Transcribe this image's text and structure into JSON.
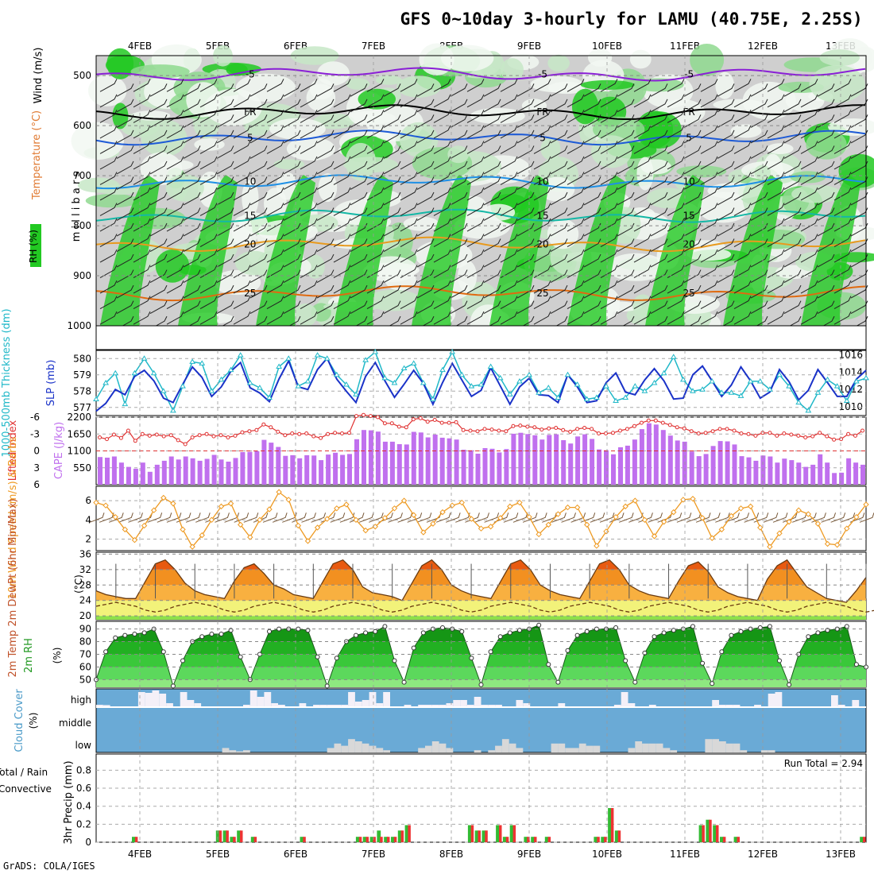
{
  "title": "GFS 0~10day 3-hourly for LAMU (40.75E, 2.25S)",
  "footer": "GrADS: COLA/IGES",
  "dates": [
    "4FEB",
    "5FEB",
    "6FEB",
    "7FEB",
    "8FEB",
    "9FEB",
    "10FEB",
    "11FEB",
    "12FEB",
    "13FEB"
  ],
  "colors": {
    "rh_dark": "#22c922",
    "rh_mid": "#8fd98f",
    "rh_light": "#c7e8c7",
    "gray": "#cfcfcf",
    "slp": "#1a32c8",
    "thick": "#20b8c8",
    "li": "#e03232",
    "cape": "#c070ee",
    "wind": "#ee9a22",
    "rh2m": "#229922",
    "cloud": "#6aaad6",
    "rain": "#33bb33",
    "conv": "#ee3333"
  },
  "chart_data": [
    {
      "type": "heatmap",
      "name": "upper-air",
      "ylabel_rh": "RH (%)",
      "ylabel_temp": "Temperature (°C)",
      "ylabel_wind": "Wind (m/s)",
      "ylabel_mb": "m i l l i b a r s",
      "yticks": [
        500,
        600,
        700,
        800,
        900,
        1000
      ],
      "ylim": [
        460,
        1000
      ],
      "isotherms": [
        {
          "label": "-5",
          "pressure": 497,
          "color": "#8a1fd6"
        },
        {
          "label": "FR",
          "pressure": 573,
          "color": "#000000"
        },
        {
          "label": "5",
          "pressure": 624,
          "color": "#1d5ad6"
        },
        {
          "label": "10",
          "pressure": 712,
          "color": "#1e90e6"
        },
        {
          "label": "15",
          "pressure": 780,
          "color": "#14b8a6"
        },
        {
          "label": "20",
          "pressure": 837,
          "color": "#e89a1e"
        },
        {
          "label": "25",
          "pressure": 935,
          "color": "#e06a10"
        }
      ]
    },
    {
      "type": "line",
      "name": "slp-thickness",
      "ylabel_left": "1000-500mb Thickness (dm)",
      "ylabel_right": "SLP (mb)",
      "yticks_left": [
        577,
        578,
        579,
        580
      ],
      "yticks_right": [
        1010,
        1012,
        1014,
        1016
      ],
      "ylim_left": [
        576.5,
        580.5
      ],
      "ylim_right": [
        1009,
        1016.5
      ],
      "thickness": [
        577.5,
        578.5,
        579.1,
        577.2,
        579.1,
        580.0,
        579.1,
        578.0,
        576.8,
        578.3,
        579.8,
        579.7,
        578.0,
        578.7,
        579.3,
        580.2,
        578.5,
        578.2,
        577.6,
        579.5,
        580.0,
        578.3,
        578.6,
        580.2,
        580.0,
        579.0,
        578.4,
        577.8,
        579.9,
        580.4,
        578.8,
        578.5,
        579.4,
        579.7,
        578.5,
        577.5,
        579.3,
        580.4,
        579.0,
        578.3,
        578.4,
        579.5,
        578.8,
        577.8,
        578.6,
        579.0,
        577.9,
        578.2,
        577.6,
        579.0,
        578.4,
        577.5,
        577.6,
        578.3,
        577.4,
        577.6,
        578.3,
        578.0,
        578.5,
        579.1,
        580.1,
        578.7,
        578.0,
        578.1,
        578.6,
        577.9,
        577.9,
        577.7,
        578.6,
        578.6,
        578.1,
        579.0,
        578.3,
        577.3,
        576.8,
        577.9,
        578.7,
        578.3,
        577.4,
        578.6,
        578.8
      ],
      "slp": [
        1009.5,
        1010.4,
        1012.0,
        1011.4,
        1013.5,
        1014.2,
        1013.0,
        1011.0,
        1010.5,
        1012.6,
        1014.6,
        1013.4,
        1011.2,
        1012.3,
        1014.1,
        1015.1,
        1012.2,
        1011.6,
        1010.6,
        1013.2,
        1015.3,
        1012.3,
        1012.0,
        1014.3,
        1015.6,
        1013.2,
        1011.8,
        1010.5,
        1013.5,
        1015.1,
        1013.0,
        1011.1,
        1012.6,
        1014.2,
        1012.7,
        1010.3,
        1012.8,
        1015.0,
        1013.1,
        1011.2,
        1011.9,
        1014.5,
        1012.4,
        1010.3,
        1012.3,
        1013.3,
        1011.4,
        1011.3,
        1010.5,
        1013.7,
        1012.3,
        1010.5,
        1010.7,
        1012.8,
        1013.9,
        1011.7,
        1011.4,
        1013.1,
        1014.4,
        1013.0,
        1010.9,
        1011.0,
        1013.7,
        1014.7,
        1013.0,
        1011.2,
        1012.5,
        1014.6,
        1013.0,
        1011.0,
        1011.7,
        1014.3,
        1012.9,
        1010.8,
        1011.9,
        1014.3,
        1012.8,
        1011.2,
        1011.2,
        1013.2,
        1014.2
      ]
    },
    {
      "type": "bar",
      "name": "cape-li",
      "ylabel_left": "Lifted Index",
      "ylabel_right": "CAPE (J/kg)",
      "yticks_left": [
        -6,
        -3,
        0,
        3,
        6
      ],
      "yticks_right": [
        550,
        1100,
        1650,
        2200
      ],
      "ylim_cape": [
        0,
        2200
      ],
      "ylim_li": [
        6,
        -6
      ],
      "cape": [
        900,
        880,
        920,
        720,
        580,
        520,
        720,
        420,
        650,
        780,
        920,
        820,
        920,
        860,
        780,
        840,
        970,
        820,
        750,
        870,
        1060,
        1070,
        1090,
        1460,
        1370,
        1230,
        940,
        960,
        860,
        960,
        950,
        800,
        980,
        1040,
        970,
        1000,
        1480,
        1780,
        1770,
        1730,
        1400,
        1400,
        1320,
        1310,
        1720,
        1700,
        1540,
        1630,
        1530,
        1510,
        1470,
        1140,
        1120,
        1010,
        1190,
        1170,
        1050,
        1160,
        1660,
        1690,
        1650,
        1610,
        1470,
        1620,
        1640,
        1450,
        1340,
        1570,
        1640,
        1490,
        1150,
        1120,
        990,
        1220,
        1270,
        1470,
        1810,
        2000,
        1960,
        1780,
        1600,
        1440,
        1400,
        1080,
        930,
        1000,
        1260,
        1420,
        1410,
        1310,
        930,
        890,
        780,
        950,
        920,
        720,
        850,
        800,
        720,
        580,
        650,
        990,
        720,
        380,
        390,
        860,
        720,
        650
      ],
      "li": [
        -2.4,
        -2.1,
        -2.9,
        -2.3,
        -3.6,
        -1.8,
        -3.0,
        -2.7,
        -2.9,
        -2.6,
        -2.8,
        -1.9,
        -1.2,
        -2.4,
        -2.8,
        -3.0,
        -2.6,
        -2.8,
        -2.4,
        -2.7,
        -3.3,
        -3.5,
        -3.7,
        -4.7,
        -4.2,
        -3.4,
        -2.8,
        -3.1,
        -3.0,
        -3.1,
        -2.6,
        -2.3,
        -3.0,
        -3.2,
        -3.1,
        -3.2,
        -6.2,
        -6.4,
        -6.2,
        -6.0,
        -4.9,
        -4.9,
        -4.3,
        -4.2,
        -5.6,
        -5.8,
        -5.2,
        -5.5,
        -5.0,
        -5.0,
        -5.1,
        -3.7,
        -3.6,
        -3.5,
        -3.9,
        -3.8,
        -3.6,
        -3.5,
        -4.4,
        -4.5,
        -4.3,
        -4.2,
        -3.8,
        -4.0,
        -4.1,
        -3.7,
        -3.4,
        -3.9,
        -4.1,
        -3.9,
        -3.1,
        -3.1,
        -3.2,
        -3.6,
        -3.9,
        -4.4,
        -5.0,
        -5.4,
        -5.4,
        -5.0,
        -4.6,
        -4.2,
        -4.0,
        -3.5,
        -3.1,
        -3.2,
        -3.5,
        -3.9,
        -3.9,
        -3.6,
        -3.1,
        -3.0,
        -2.7,
        -3.2,
        -3.2,
        -2.7,
        -3.1,
        -2.9,
        -2.7,
        -2.4,
        -2.6,
        -3.2,
        -2.6,
        -2.0,
        -2.1,
        -3.0,
        -2.7,
        -3.6
      ]
    },
    {
      "type": "line",
      "name": "wind10m",
      "ylabel": "10m Wind Speed (m/s) & Barbs",
      "yticks": [
        2,
        4,
        6
      ],
      "ylim": [
        0.8,
        7.5
      ],
      "speed": [
        5.8,
        5.5,
        4.3,
        3.0,
        1.9,
        3.4,
        5.0,
        6.3,
        5.7,
        3.0,
        1.2,
        2.4,
        4.0,
        5.4,
        5.7,
        3.5,
        2.2,
        4.0,
        5.1,
        6.9,
        6.1,
        3.4,
        1.8,
        3.2,
        4.1,
        5.2,
        5.6,
        4.0,
        2.9,
        3.3,
        4.2,
        5.2,
        6.0,
        4.5,
        2.7,
        3.6,
        4.8,
        5.5,
        5.8,
        4.1,
        3.1,
        3.3,
        4.2,
        5.4,
        5.8,
        4.3,
        2.5,
        3.5,
        4.6,
        5.3,
        5.3,
        3.5,
        1.3,
        2.8,
        4.3,
        5.4,
        6.0,
        4.0,
        2.3,
        3.8,
        4.8,
        6.1,
        6.2,
        4.2,
        2.1,
        3.0,
        4.4,
        5.2,
        5.4,
        3.2,
        1.2,
        2.6,
        3.8,
        5.0,
        4.6,
        3.6,
        1.5,
        1.4,
        3.1,
        4.3,
        5.6
      ]
    },
    {
      "type": "area",
      "name": "temp2m",
      "ylabel": "2m Temp 2m DewPt (6hr Min/Max)",
      "yunit": "(°C)",
      "yticks": [
        20,
        24,
        28,
        32,
        36
      ],
      "ylim": [
        19,
        36.5
      ],
      "temp": [
        26.5,
        25.5,
        25.0,
        24.5,
        24.5,
        29.0,
        33.5,
        34.5,
        32.0,
        28.5,
        26.5,
        25.5,
        25.0,
        24.5,
        29.0,
        32.5,
        33.5,
        31.0,
        28.0,
        27.0,
        25.5,
        25.0,
        24.5,
        29.0,
        33.5,
        34.5,
        32.0,
        27.5,
        26.0,
        25.5,
        25.0,
        24.0,
        28.5,
        33.0,
        34.5,
        32.0,
        28.0,
        26.5,
        25.5,
        25.0,
        24.5,
        29.0,
        33.5,
        34.5,
        32.0,
        28.0,
        26.5,
        25.5,
        25.0,
        24.5,
        29.0,
        33.5,
        34.5,
        32.0,
        28.0,
        26.5,
        25.5,
        25.0,
        24.5,
        29.0,
        33.0,
        34.0,
        31.5,
        27.5,
        26.0,
        25.0,
        24.5,
        24.0,
        29.5,
        33.0,
        34.5,
        31.0,
        27.5,
        26.0,
        24.5,
        24.0,
        23.5,
        26.5,
        30.0
      ],
      "dewpt": [
        22.5,
        23.0,
        23.5,
        23.0,
        22.5,
        21.5,
        21.0,
        21.5,
        22.5,
        23.0,
        23.5,
        23.0,
        22.5,
        21.5,
        21.0,
        21.5,
        22.5,
        23.0,
        23.5,
        23.0,
        22.5,
        21.5,
        21.0,
        21.5,
        22.5,
        23.0,
        23.5,
        23.0,
        22.5,
        21.5,
        21.0,
        21.5,
        22.5,
        23.0,
        23.5,
        23.0,
        22.5,
        21.5,
        21.0,
        21.5,
        22.5,
        23.0,
        23.5,
        23.0,
        22.5,
        21.5,
        21.0,
        21.5,
        22.5,
        23.0,
        23.5,
        23.0,
        22.5,
        21.5,
        21.0,
        21.5,
        22.5,
        23.0,
        23.5,
        23.0,
        22.5,
        21.5,
        21.0,
        21.5,
        22.5,
        23.0,
        23.5,
        23.0,
        22.5,
        21.5,
        21.0,
        21.5,
        22.5,
        23.0,
        23.5,
        23.0,
        22.5,
        21.5,
        21.0,
        21.5,
        22.5
      ]
    },
    {
      "type": "area",
      "name": "rh2m",
      "ylabel": "2m RH",
      "yunit": "(%)",
      "yticks": [
        50,
        60,
        70,
        80,
        90
      ],
      "ylim": [
        44,
        96
      ],
      "rh": [
        50,
        72,
        83,
        85,
        86,
        87,
        90,
        72,
        45,
        65,
        80,
        84,
        86,
        86,
        89,
        68,
        50,
        70,
        88,
        90,
        90,
        90,
        89,
        68,
        45,
        67,
        80,
        85,
        87,
        88,
        92,
        65,
        48,
        75,
        87,
        90,
        91,
        90,
        88,
        67,
        46,
        72,
        84,
        87,
        89,
        90,
        93,
        62,
        48,
        73,
        85,
        88,
        90,
        90,
        91,
        65,
        48,
        71,
        84,
        87,
        89,
        90,
        92,
        63,
        47,
        72,
        85,
        88,
        90,
        91,
        92,
        65,
        46,
        70,
        84,
        87,
        89,
        90,
        92,
        62,
        60
      ]
    },
    {
      "type": "bar",
      "name": "cloud",
      "ylabel": "Cloud Cover",
      "yunit": "(%)",
      "levels": [
        "high",
        "middle",
        "low"
      ],
      "high_gap": [
        10,
        8,
        0,
        0,
        0,
        0,
        90,
        85,
        100,
        80,
        20,
        0,
        90,
        40,
        20,
        0,
        0,
        0,
        0,
        0,
        0,
        10,
        100,
        60,
        90,
        20,
        10,
        0,
        0,
        20,
        0,
        10,
        10,
        10,
        10,
        10,
        90,
        30,
        40,
        90,
        20,
        90,
        0,
        0,
        10,
        0,
        10,
        10,
        10,
        10,
        20,
        40,
        40,
        10,
        60,
        10,
        10,
        10,
        0,
        0,
        40,
        20,
        0,
        0,
        0,
        0,
        20,
        0,
        0,
        0,
        0,
        0,
        0,
        0,
        10,
        90,
        20,
        0,
        0,
        10,
        0,
        0,
        0,
        0,
        0,
        0,
        0,
        0,
        40,
        10,
        10,
        10,
        0,
        0,
        10,
        0,
        80,
        90,
        0,
        0,
        0,
        0,
        0,
        0,
        0,
        70,
        10,
        0,
        40,
        0
      ],
      "low": [
        0,
        0,
        0,
        0,
        0,
        0,
        0,
        0,
        0,
        0,
        0,
        0,
        0,
        0,
        0,
        0,
        0,
        0,
        20,
        10,
        5,
        10,
        0,
        0,
        0,
        0,
        0,
        0,
        0,
        0,
        0,
        0,
        0,
        20,
        40,
        30,
        60,
        50,
        40,
        30,
        20,
        10,
        0,
        0,
        0,
        0,
        20,
        30,
        50,
        40,
        20,
        0,
        0,
        0,
        10,
        0,
        10,
        30,
        60,
        40,
        20,
        0,
        0,
        0,
        0,
        40,
        40,
        20,
        20,
        40,
        30,
        30,
        0,
        0,
        0,
        0,
        20,
        50,
        40,
        40,
        40,
        20,
        10,
        0,
        0,
        0,
        0,
        60,
        60,
        50,
        40,
        40,
        10,
        0,
        0,
        10,
        10,
        0,
        0,
        0,
        0,
        0,
        0,
        0,
        0,
        0,
        0,
        0,
        0,
        0
      ]
    },
    {
      "type": "bar",
      "name": "precip",
      "ylabel_total": "Total / Rain",
      "ylabel_conv": "Convective",
      "ylabel": "3hr Precip (mm)",
      "run_total": "Run Total = 2.94",
      "yticks": [
        0,
        0.2,
        0.4,
        0.6,
        0.8
      ],
      "ylim": [
        0,
        0.98
      ],
      "total": [
        0,
        0,
        0,
        0,
        0,
        0.06,
        0,
        0,
        0,
        0,
        0,
        0,
        0,
        0,
        0,
        0,
        0,
        0.13,
        0.13,
        0.06,
        0.13,
        0,
        0.06,
        0,
        0,
        0,
        0,
        0,
        0,
        0.06,
        0,
        0,
        0,
        0,
        0,
        0,
        0,
        0.06,
        0.06,
        0.06,
        0.13,
        0.06,
        0.06,
        0.13,
        0.19,
        0,
        0,
        0,
        0,
        0,
        0,
        0,
        0,
        0.19,
        0.13,
        0.13,
        0,
        0.19,
        0.06,
        0.19,
        0,
        0.06,
        0.06,
        0,
        0.06,
        0,
        0,
        0,
        0,
        0,
        0,
        0.06,
        0.06,
        0.38,
        0.13,
        0,
        0,
        0,
        0,
        0,
        0,
        0,
        0,
        0,
        0,
        0,
        0.19,
        0.25,
        0.19,
        0.06,
        0,
        0.06,
        0,
        0,
        0,
        0,
        0,
        0,
        0,
        0,
        0,
        0,
        0,
        0,
        0,
        0,
        0,
        0,
        0,
        0.06
      ],
      "conv": [
        0,
        0,
        0,
        0,
        0,
        0.06,
        0,
        0,
        0,
        0,
        0,
        0,
        0,
        0,
        0,
        0,
        0,
        0.13,
        0.13,
        0.06,
        0.13,
        0,
        0.06,
        0,
        0,
        0,
        0,
        0,
        0,
        0.06,
        0,
        0,
        0,
        0,
        0,
        0,
        0,
        0.06,
        0.06,
        0.06,
        0.06,
        0.06,
        0.06,
        0.13,
        0.19,
        0,
        0,
        0,
        0,
        0,
        0,
        0,
        0,
        0.19,
        0.13,
        0.13,
        0,
        0.19,
        0.06,
        0.19,
        0,
        0.06,
        0.06,
        0,
        0.06,
        0,
        0,
        0,
        0,
        0,
        0,
        0.06,
        0.06,
        0.38,
        0.13,
        0,
        0,
        0,
        0,
        0,
        0,
        0,
        0,
        0,
        0,
        0,
        0.19,
        0.25,
        0.19,
        0.06,
        0,
        0.06,
        0,
        0,
        0,
        0,
        0,
        0,
        0,
        0,
        0,
        0,
        0,
        0,
        0,
        0,
        0,
        0,
        0,
        0.06
      ]
    }
  ]
}
